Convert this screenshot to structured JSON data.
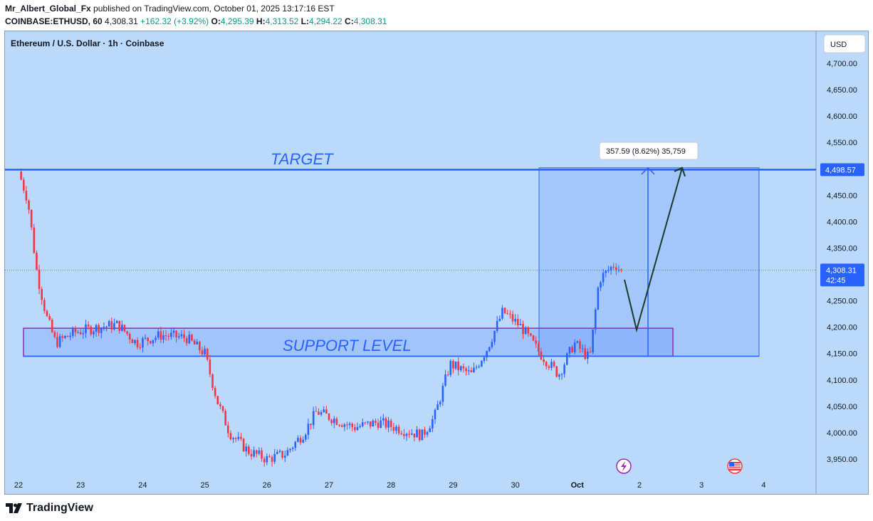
{
  "header": {
    "author": "Mr_Albert_Global_Fx",
    "published": "published on TradingView.com, October 01, 2025 13:17:16 EST",
    "symbol": "COINBASE:ETHUSD, 60",
    "last": "4,308.31",
    "change": "+162.32 (+3.92%)",
    "o_label": "O:",
    "o": "4,295.39",
    "h_label": "H:",
    "h": "4,313.52",
    "l_label": "L:",
    "l": "4,294.22",
    "c_label": "C:",
    "c": "4,308.31"
  },
  "chart_title": "Ethereum / U.S. Dollar · 1h · Coinbase",
  "currency_button": "USD",
  "colors": {
    "background": "#bbdafb",
    "up": "#2962ff",
    "down": "#f23645",
    "zone_border": "#9c27b0",
    "line": "#2962ff",
    "projection": "#1b3a2e"
  },
  "chart_data": {
    "type": "candlestick",
    "y_ticks": [
      "4,700.00",
      "4,650.00",
      "4,600.00",
      "4,550.00",
      "4,500.00",
      "4,450.00",
      "4,400.00",
      "4,350.00",
      "4,300.00",
      "4,250.00",
      "4,200.00",
      "4,150.00",
      "4,100.00",
      "4,050.00",
      "4,000.00",
      "3,950.00"
    ],
    "y_values": [
      4700,
      4650,
      4600,
      4550,
      4500,
      4450,
      4400,
      4350,
      4300,
      4250,
      4200,
      4150,
      4100,
      4050,
      4000,
      3950
    ],
    "ylim": [
      3925,
      4730
    ],
    "x_ticks": [
      "22",
      "23",
      "24",
      "25",
      "26",
      "27",
      "28",
      "29",
      "30",
      "Oct",
      "2",
      "3",
      "4"
    ],
    "target": {
      "label": "TARGET",
      "price": 4498.57,
      "price_label": "4,498.57"
    },
    "support": {
      "label": "SUPPORT LEVEL",
      "low": 4145,
      "high": 4198
    },
    "current": {
      "price": 4308.31,
      "price_label": "4,308.31",
      "countdown": "42:45"
    },
    "measure": {
      "label": "357.59 (8.62%) 35,759",
      "from": 4145,
      "to": 4502
    },
    "projection": [
      4290,
      4195,
      4502
    ],
    "series": [
      {
        "day": 22.0,
        "price": 4495
      },
      {
        "day": 22.15,
        "price": 4440
      },
      {
        "day": 22.3,
        "price": 4300
      },
      {
        "day": 22.45,
        "price": 4220
      },
      {
        "day": 22.6,
        "price": 4170
      },
      {
        "day": 22.9,
        "price": 4190
      },
      {
        "day": 23.3,
        "price": 4200
      },
      {
        "day": 23.6,
        "price": 4205
      },
      {
        "day": 23.9,
        "price": 4170
      },
      {
        "day": 24.3,
        "price": 4185
      },
      {
        "day": 24.7,
        "price": 4180
      },
      {
        "day": 25.0,
        "price": 4150
      },
      {
        "day": 25.2,
        "price": 4060
      },
      {
        "day": 25.4,
        "price": 4000
      },
      {
        "day": 25.7,
        "price": 3965
      },
      {
        "day": 26.0,
        "price": 3950
      },
      {
        "day": 26.3,
        "price": 3960
      },
      {
        "day": 26.6,
        "price": 4000
      },
      {
        "day": 26.8,
        "price": 4040
      },
      {
        "day": 27.0,
        "price": 4030
      },
      {
        "day": 27.4,
        "price": 4010
      },
      {
        "day": 27.8,
        "price": 4020
      },
      {
        "day": 28.2,
        "price": 4005
      },
      {
        "day": 28.5,
        "price": 3995
      },
      {
        "day": 28.7,
        "price": 4030
      },
      {
        "day": 28.95,
        "price": 4130
      },
      {
        "day": 29.3,
        "price": 4110
      },
      {
        "day": 29.55,
        "price": 4160
      },
      {
        "day": 29.8,
        "price": 4230
      },
      {
        "day": 30.1,
        "price": 4200
      },
      {
        "day": 30.4,
        "price": 4150
      },
      {
        "day": 30.7,
        "price": 4110
      },
      {
        "day": 30.95,
        "price": 4170
      },
      {
        "day": 31.2,
        "price": 4140
      },
      {
        "day": 31.35,
        "price": 4290
      },
      {
        "day": 31.6,
        "price": 4320
      },
      {
        "day": 31.75,
        "price": 4300
      }
    ]
  },
  "badges": {
    "flash_icon": "lightning-event-icon",
    "flag_icon": "us-flag-event-icon"
  },
  "footer": {
    "brand": "TradingView"
  }
}
